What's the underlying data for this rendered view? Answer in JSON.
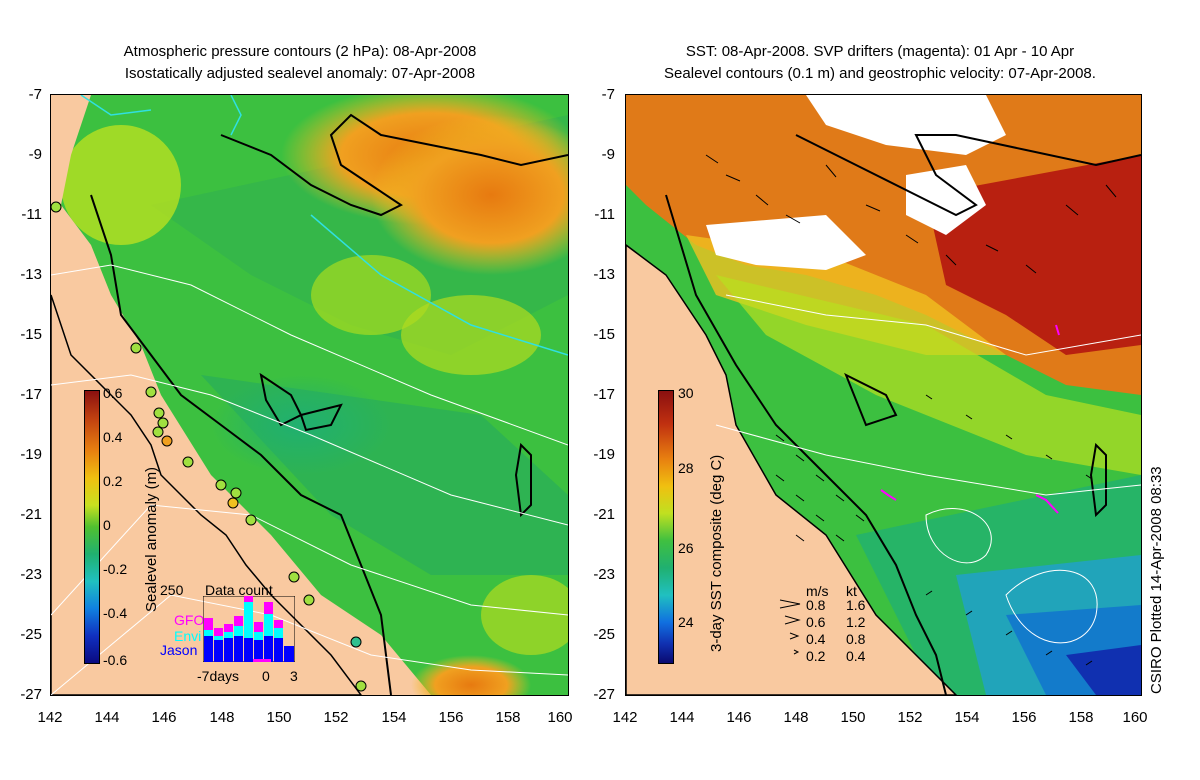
{
  "left_panel": {
    "title_line1": "Atmospheric pressure contours (2 hPa): 08-Apr-2008",
    "title_line2": "Isostatically adjusted sealevel anomaly: 07-Apr-2008",
    "colorbar_label": "Sealevel anomaly (m)",
    "colorbar_ticks": [
      "0.6",
      "0.4",
      "0.2",
      "0",
      "-0.2",
      "-0.4",
      "-0.6"
    ],
    "inset": {
      "title": "Data count",
      "ymax_label": "250",
      "legend": [
        "GFO",
        "Envi",
        "Jason"
      ],
      "legend_colors": [
        "#ff00ff",
        "#00ffff",
        "#0000ff"
      ],
      "x_labels": [
        "-7days",
        "0",
        "3"
      ]
    }
  },
  "right_panel": {
    "title_line1": "SST: 08-Apr-2008. SVP drifters (magenta): 01 Apr - 10 Apr",
    "title_line2": "Sealevel contours (0.1 m) and geostrophic velocity: 07-Apr-2008.",
    "colorbar_label": "3-day SST composite (deg C)",
    "colorbar_ticks": [
      "30",
      "28",
      "26",
      "24"
    ],
    "velocity_legend": {
      "header_ms": "m/s",
      "header_kt": "kt",
      "rows": [
        {
          "ms": "0.8",
          "kt": "1.6"
        },
        {
          "ms": "0.6",
          "kt": "1.2"
        },
        {
          "ms": "0.4",
          "kt": "0.8"
        },
        {
          "ms": "0.2",
          "kt": "0.4"
        }
      ]
    },
    "credit": "CSIRO Plotted 14-Apr-2008 08:33"
  },
  "axes": {
    "y_ticks": [
      "-7",
      "-9",
      "-11",
      "-13",
      "-15",
      "-17",
      "-19",
      "-21",
      "-23",
      "-25",
      "-27"
    ],
    "x_ticks": [
      "142",
      "144",
      "146",
      "148",
      "150",
      "152",
      "154",
      "156",
      "158",
      "160"
    ]
  },
  "colors": {
    "land": "#f9c9a0",
    "coast": "#000000"
  }
}
